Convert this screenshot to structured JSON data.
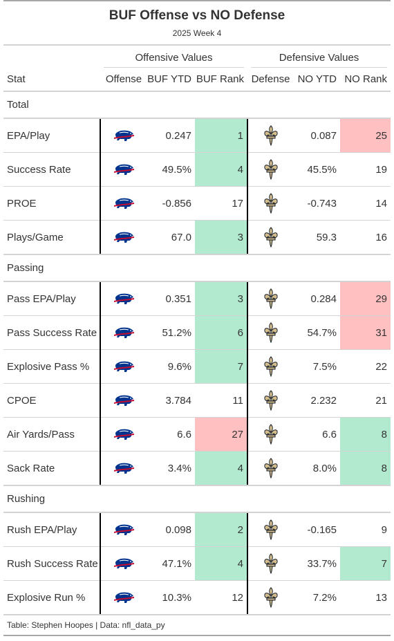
{
  "title": "BUF Offense vs NO Defense",
  "subtitle": "2025 Week 4",
  "spanners": {
    "offense": "Offensive Values",
    "defense": "Defensive Values"
  },
  "columns": {
    "stat": "Stat",
    "offense": "Offense",
    "off_ytd": "BUF YTD",
    "off_rank": "BUF Rank",
    "defense": "Defense",
    "def_ytd": "NO YTD",
    "def_rank": "NO Rank"
  },
  "colors": {
    "good": "#b2ead0",
    "bad": "#ffc0c2",
    "bills_blue": "#00338d",
    "bills_red": "#c60c30",
    "saints_gold": "#d3bc8d"
  },
  "icons": {
    "offense": "buffalo-bills-logo-icon",
    "defense": "new-orleans-saints-logo-icon"
  },
  "groups": [
    {
      "label": "Total",
      "rows": [
        {
          "stat": "EPA/Play",
          "off_ytd": "0.247",
          "off_rank": "1",
          "off_color": "good",
          "def_ytd": "0.087",
          "def_rank": "25",
          "def_color": "bad"
        },
        {
          "stat": "Success Rate",
          "off_ytd": "49.5%",
          "off_rank": "4",
          "off_color": "good",
          "def_ytd": "45.5%",
          "def_rank": "19",
          "def_color": ""
        },
        {
          "stat": "PROE",
          "off_ytd": "-0.856",
          "off_rank": "17",
          "off_color": "",
          "def_ytd": "-0.743",
          "def_rank": "14",
          "def_color": ""
        },
        {
          "stat": "Plays/Game",
          "off_ytd": "67.0",
          "off_rank": "3",
          "off_color": "good",
          "def_ytd": "59.3",
          "def_rank": "16",
          "def_color": ""
        }
      ]
    },
    {
      "label": "Passing",
      "rows": [
        {
          "stat": "Pass EPA/Play",
          "off_ytd": "0.351",
          "off_rank": "3",
          "off_color": "good",
          "def_ytd": "0.284",
          "def_rank": "29",
          "def_color": "bad"
        },
        {
          "stat": "Pass Success Rate",
          "off_ytd": "51.2%",
          "off_rank": "6",
          "off_color": "good",
          "def_ytd": "54.7%",
          "def_rank": "31",
          "def_color": "bad"
        },
        {
          "stat": "Explosive Pass %",
          "off_ytd": "9.6%",
          "off_rank": "7",
          "off_color": "good",
          "def_ytd": "7.5%",
          "def_rank": "22",
          "def_color": ""
        },
        {
          "stat": "CPOE",
          "off_ytd": "3.784",
          "off_rank": "11",
          "off_color": "",
          "def_ytd": "2.232",
          "def_rank": "21",
          "def_color": ""
        },
        {
          "stat": "Air Yards/Pass",
          "off_ytd": "6.6",
          "off_rank": "27",
          "off_color": "bad",
          "def_ytd": "6.6",
          "def_rank": "8",
          "def_color": "good"
        },
        {
          "stat": "Sack Rate",
          "off_ytd": "3.4%",
          "off_rank": "4",
          "off_color": "good",
          "def_ytd": "8.0%",
          "def_rank": "8",
          "def_color": "good"
        }
      ]
    },
    {
      "label": "Rushing",
      "rows": [
        {
          "stat": "Rush EPA/Play",
          "off_ytd": "0.098",
          "off_rank": "2",
          "off_color": "good",
          "def_ytd": "-0.165",
          "def_rank": "9",
          "def_color": ""
        },
        {
          "stat": "Rush Success Rate",
          "off_ytd": "47.1%",
          "off_rank": "4",
          "off_color": "good",
          "def_ytd": "33.7%",
          "def_rank": "7",
          "def_color": "good"
        },
        {
          "stat": "Explosive Run %",
          "off_ytd": "10.3%",
          "off_rank": "12",
          "off_color": "",
          "def_ytd": "7.2%",
          "def_rank": "13",
          "def_color": ""
        }
      ]
    }
  ],
  "source_note": "Table: Stephen Hoopes | Data: nfl_data_py"
}
